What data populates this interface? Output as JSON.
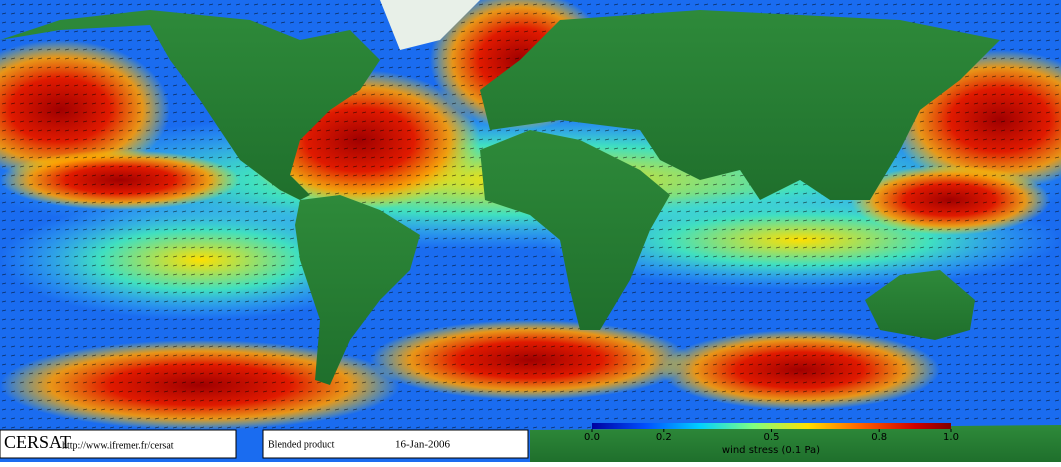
{
  "map": {
    "source": "CERSAT",
    "url": "http://www.ifremer.fr/cersat",
    "product": "Blended product",
    "date": "16-Jan-2006"
  },
  "colorbar": {
    "range": [
      0,
      1
    ],
    "ticks": [
      {
        "value": 0,
        "label": "0.0"
      },
      0.2,
      0.5,
      0.8,
      {
        "value": 1,
        "label": "1.0"
      }
    ],
    "label": "wind stress (0.1 Pa)"
  }
}
